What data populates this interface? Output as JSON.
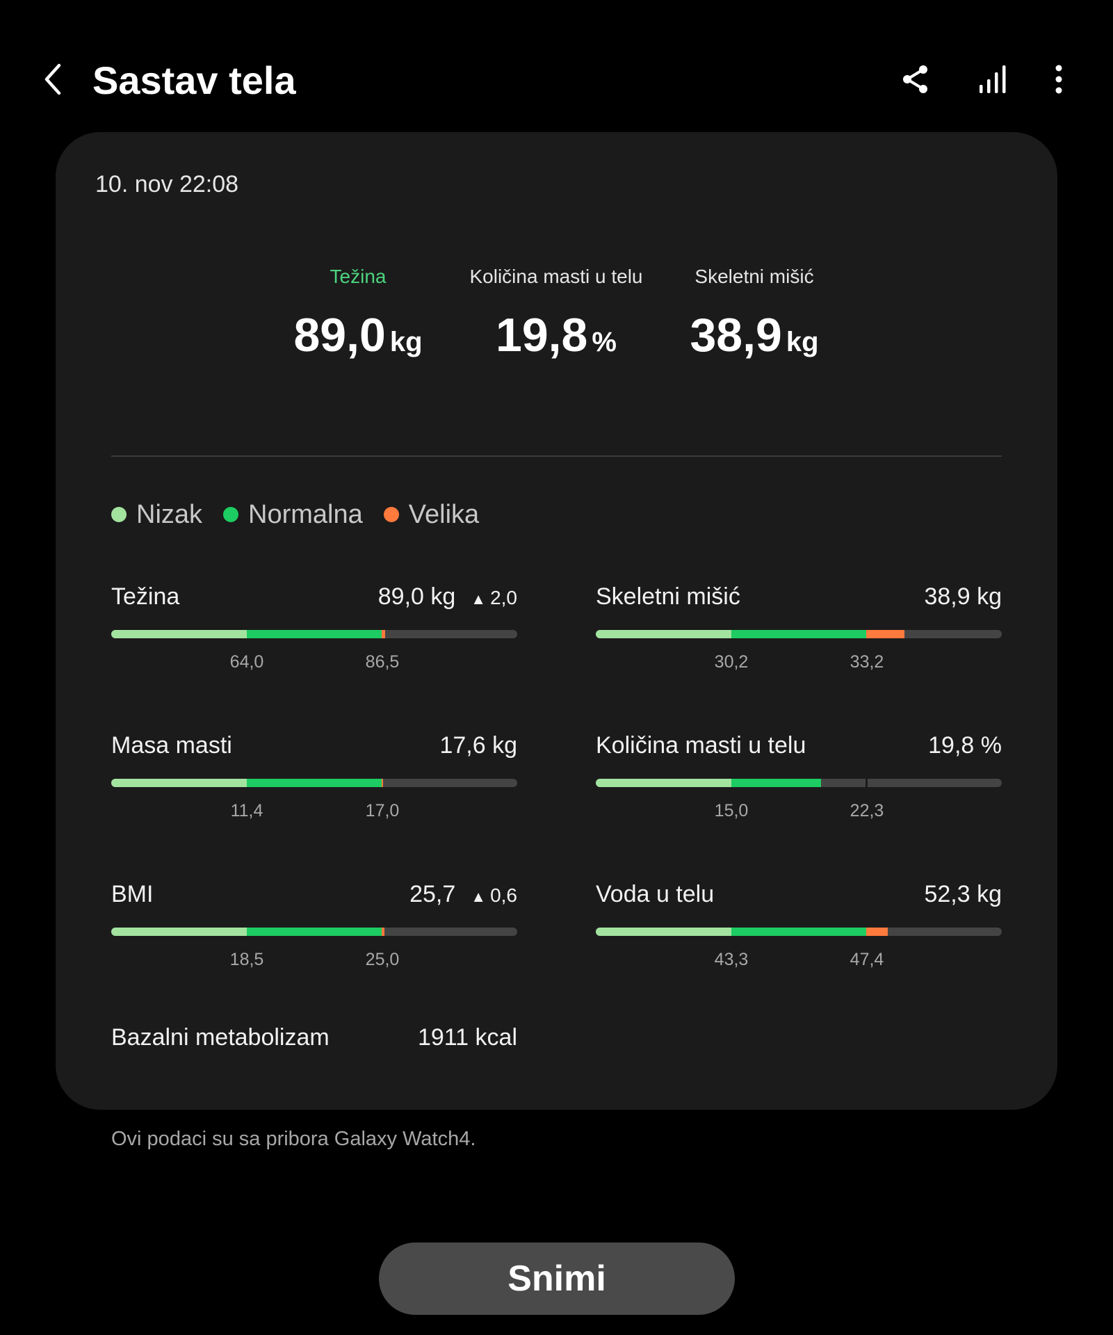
{
  "colors": {
    "low": "#a3e3a0",
    "normal": "#1dcc62",
    "high": "#ff7a3d",
    "track": "#444444",
    "accent": "#4cd47e"
  },
  "header": {
    "title": "Sastav tela",
    "back_icon": "chevron-left-icon",
    "icons": [
      "share-icon",
      "trend-chart-icon",
      "more-vertical-icon"
    ]
  },
  "card": {
    "date": "10. nov 22:08",
    "summary": [
      {
        "label": "Težina",
        "value": "89,0",
        "unit": "kg",
        "active": true
      },
      {
        "label": "Količina masti u telu",
        "value": "19,8",
        "unit": "%",
        "active": false
      },
      {
        "label": "Skeletni mišić",
        "value": "38,9",
        "unit": "kg",
        "active": false
      }
    ],
    "legend": [
      {
        "label": "Nizak",
        "color": "#a3e3a0"
      },
      {
        "label": "Normalna",
        "color": "#1dcc62"
      },
      {
        "label": "Velika",
        "color": "#ff7a3d"
      }
    ],
    "metrics": [
      {
        "label": "Težina",
        "value": "89,0 kg",
        "delta": "2,0",
        "low_bound": "64,0",
        "high_bound": "86,5",
        "position": 0.675
      },
      {
        "label": "Skeletni mišić",
        "value": "38,9 kg",
        "delta": "",
        "low_bound": "30,2",
        "high_bound": "33,2",
        "position": 0.76
      },
      {
        "label": "Masa masti",
        "value": "17,6 kg",
        "delta": "",
        "low_bound": "11,4",
        "high_bound": "17,0",
        "position": 0.67
      },
      {
        "label": "Količina masti u telu",
        "value": "19,8 %",
        "delta": "",
        "low_bound": "15,0",
        "high_bound": "22,3",
        "position": 0.555
      },
      {
        "label": "BMI",
        "value": "25,7",
        "delta": "0,6",
        "low_bound": "18,5",
        "high_bound": "25,0",
        "position": 0.673
      },
      {
        "label": "Voda u telu",
        "value": "52,3 kg",
        "delta": "",
        "low_bound": "43,3",
        "high_bound": "47,4",
        "position": 0.72
      }
    ],
    "bmr": {
      "label": "Bazalni metabolizam",
      "value": "1911 kcal"
    }
  },
  "footer": {
    "source_note": "Ovi podaci su sa pribora Galaxy Watch4.",
    "record_button": "Snimi"
  }
}
